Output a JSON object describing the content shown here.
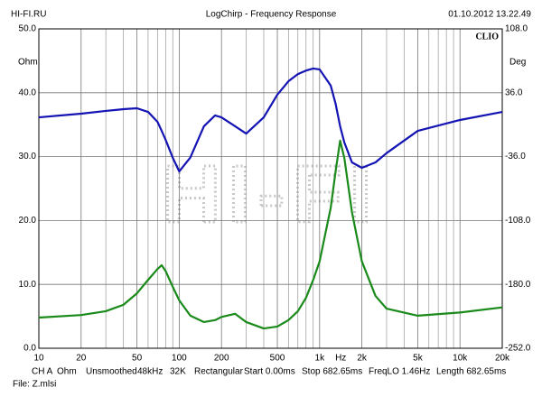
{
  "header": {
    "left": "HI-FI.RU",
    "title": "LogChirp - Frequency Response",
    "right": "01.10.2012 13.22.49"
  },
  "chart_data": {
    "type": "line",
    "brand": "CLIO",
    "watermark": "HI-FI",
    "y_label": "Ohm",
    "y2_label": "Deg",
    "x_unit": "Hz",
    "xscale": "log",
    "xlim": [
      10,
      20000
    ],
    "xticks": [
      10,
      20,
      50,
      100,
      200,
      500,
      {
        "value": 1000,
        "label": "1k"
      },
      {
        "value": 2000,
        "label": "2k"
      },
      {
        "value": 5000,
        "label": "5k"
      },
      {
        "value": 10000,
        "label": "10k"
      },
      {
        "value": 20000,
        "label": "20k"
      }
    ],
    "xgrid": [
      30,
      40,
      60,
      70,
      80,
      90,
      300,
      400,
      600,
      700,
      800,
      900,
      3000,
      4000,
      6000,
      7000,
      8000,
      9000
    ],
    "ylim": [
      0,
      50
    ],
    "yticks": [
      {
        "value": 0,
        "label": "0.0"
      },
      {
        "value": 10,
        "label": "10.0"
      },
      {
        "value": 20,
        "label": "20.0"
      },
      {
        "value": 30,
        "label": "30.0"
      },
      {
        "value": 40,
        "label": "40.0"
      },
      {
        "value": 50,
        "label": "50.0"
      }
    ],
    "y2lim": [
      -252,
      108
    ],
    "y2ticks": [
      {
        "value": 108,
        "label": "108.0"
      },
      {
        "value": 36,
        "label": "36.0"
      },
      {
        "value": -36,
        "label": "-36.0"
      },
      {
        "value": -108,
        "label": "-108.0"
      },
      {
        "value": -180,
        "label": "-180.0"
      },
      {
        "value": -252,
        "label": "-252.0"
      }
    ],
    "grid": true,
    "x": [
      10,
      20,
      30,
      40,
      50,
      60,
      70,
      75,
      80,
      90,
      100,
      120,
      150,
      180,
      200,
      250,
      300,
      400,
      500,
      600,
      700,
      800,
      900,
      1000,
      1200,
      1300,
      1400,
      1500,
      1700,
      2000,
      2500,
      3000,
      5000,
      10000,
      20000
    ],
    "series": [
      {
        "color": "#1a8a1a",
        "values": [
          4.8,
          5.2,
          5.8,
          6.8,
          8.6,
          10.7,
          12.4,
          13.0,
          12.1,
          9.6,
          7.5,
          5.1,
          4.1,
          4.4,
          4.9,
          5.4,
          4.1,
          3.1,
          3.4,
          4.4,
          5.8,
          7.9,
          10.7,
          13.6,
          22,
          27.7,
          32.5,
          29.8,
          21.3,
          13.6,
          8.2,
          6.2,
          5.1,
          5.6,
          6.4
        ]
      },
      {
        "color": "#1414b4",
        "axis": "y2",
        "values": [
          8.3,
          12.4,
          15.5,
          17.5,
          18.5,
          14.4,
          3.3,
          -7,
          -17,
          -37.4,
          -52.7,
          -37,
          -1.8,
          10.4,
          8.3,
          -1.8,
          -10,
          8.3,
          33.8,
          49,
          57,
          61,
          63.3,
          62.3,
          44,
          23.6,
          -1.8,
          -20,
          -42.5,
          -48.6,
          -42.5,
          -32,
          -7,
          5.3,
          14.4
        ]
      }
    ]
  },
  "footer": {
    "items": [
      "CH A",
      "Ohm",
      "Unsmoothed",
      "48kHz",
      "32K",
      "Rectangular",
      "Start 0.00ms",
      "Stop 682.65ms",
      "FreqLO 1.46Hz",
      "Length 682.65ms"
    ],
    "file": "File: Z.mlsi"
  }
}
